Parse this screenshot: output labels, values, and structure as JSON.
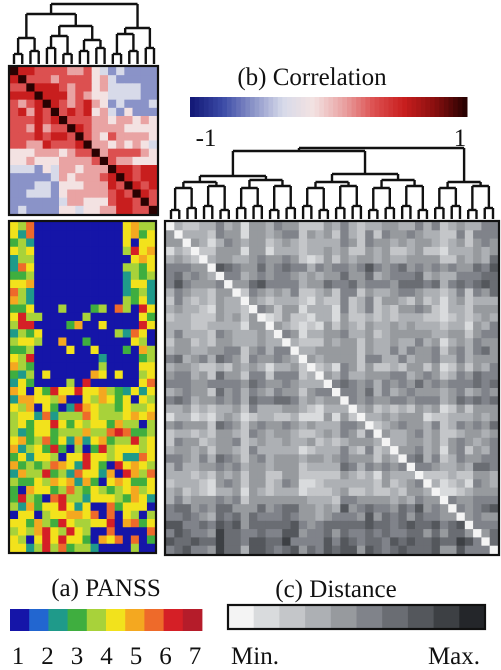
{
  "chart_data": [
    {
      "panel": "a",
      "type": "heatmap",
      "title": "(a) PANSS",
      "scale_ticks": [
        "1",
        "2",
        "3",
        "4",
        "5",
        "6",
        "7"
      ],
      "colors": [
        "#1515a8",
        "#2266d0",
        "#1f9a8a",
        "#3fae3f",
        "#a8d23a",
        "#f2e21c",
        "#f4a820",
        "#ee6a2a",
        "#d51f26",
        "#b51c2a"
      ]
    },
    {
      "panel": "b",
      "type": "heatmap",
      "title": "(b) Correlation",
      "range": [
        "-1",
        "1"
      ],
      "colors": [
        "#141a78",
        "#3b4aa6",
        "#8a93c8",
        "#d7dae9",
        "#f3e2e2",
        "#e9a3a3",
        "#dc5050",
        "#c81e1e",
        "#8a0f0f",
        "#2a0202"
      ]
    },
    {
      "panel": "c",
      "type": "heatmap",
      "title": "(c) Distance",
      "range": [
        "Min.",
        "Max."
      ],
      "colors": [
        "#f4f4f4",
        "#d9dbdd",
        "#c4c6c9",
        "#adb0b4",
        "#979a9e",
        "#80838a",
        "#6a6d73",
        "#54575c",
        "#3d4044",
        "#24262a"
      ]
    }
  ]
}
